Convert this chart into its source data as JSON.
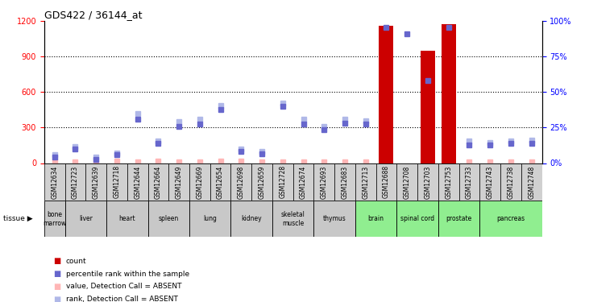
{
  "title": "GDS422 / 36144_at",
  "samples": [
    "GSM12634",
    "GSM12723",
    "GSM12639",
    "GSM12718",
    "GSM12644",
    "GSM12664",
    "GSM12649",
    "GSM12669",
    "GSM12654",
    "GSM12698",
    "GSM12659",
    "GSM12728",
    "GSM12674",
    "GSM12693",
    "GSM12683",
    "GSM12713",
    "GSM12688",
    "GSM12708",
    "GSM12703",
    "GSM12753",
    "GSM12733",
    "GSM12743",
    "GSM12738",
    "GSM12748"
  ],
  "tissues": [
    {
      "label": "bone\nmarrow",
      "start": 0,
      "end": 1,
      "color": "#c8c8c8"
    },
    {
      "label": "liver",
      "start": 1,
      "end": 3,
      "color": "#c8c8c8"
    },
    {
      "label": "heart",
      "start": 3,
      "end": 5,
      "color": "#c8c8c8"
    },
    {
      "label": "spleen",
      "start": 5,
      "end": 7,
      "color": "#c8c8c8"
    },
    {
      "label": "lung",
      "start": 7,
      "end": 9,
      "color": "#c8c8c8"
    },
    {
      "label": "kidney",
      "start": 9,
      "end": 11,
      "color": "#c8c8c8"
    },
    {
      "label": "skeletal\nmuscle",
      "start": 11,
      "end": 13,
      "color": "#c8c8c8"
    },
    {
      "label": "thymus",
      "start": 13,
      "end": 15,
      "color": "#c8c8c8"
    },
    {
      "label": "brain",
      "start": 15,
      "end": 17,
      "color": "#90ee90"
    },
    {
      "label": "spinal cord",
      "start": 17,
      "end": 19,
      "color": "#90ee90"
    },
    {
      "label": "prostate",
      "start": 19,
      "end": 21,
      "color": "#90ee90"
    },
    {
      "label": "pancreas",
      "start": 21,
      "end": 24,
      "color": "#90ee90"
    }
  ],
  "bar_values": [
    0,
    0,
    0,
    0,
    0,
    0,
    0,
    0,
    0,
    0,
    0,
    0,
    0,
    0,
    0,
    0,
    1160,
    0,
    950,
    1175,
    0,
    0,
    0,
    0
  ],
  "pink_values": [
    18,
    12,
    5,
    18,
    12,
    16,
    12,
    10,
    18,
    16,
    12,
    10,
    12,
    10,
    10,
    8,
    0,
    0,
    0,
    0,
    10,
    8,
    8,
    10
  ],
  "blue_sq_values": [
    50,
    120,
    30,
    70,
    370,
    165,
    310,
    330,
    450,
    100,
    80,
    480,
    330,
    280,
    340,
    330,
    1150,
    1090,
    700,
    1150,
    155,
    155,
    165,
    170
  ],
  "lavender_values": [
    70,
    140,
    50,
    85,
    420,
    185,
    350,
    370,
    490,
    120,
    100,
    510,
    370,
    310,
    370,
    360,
    0,
    0,
    0,
    0,
    185,
    175,
    185,
    195
  ],
  "ylim": [
    0,
    1200
  ],
  "yticks": [
    0,
    300,
    600,
    900,
    1200
  ],
  "y2ticks": [
    0,
    25,
    50,
    75,
    100
  ],
  "background_color": "#ffffff",
  "bar_color": "#cc0000",
  "pink_color": "#ffb6b6",
  "blue_color": "#6666cc",
  "lavender_color": "#b0b8e8",
  "sample_box_color": "#d0d0d0",
  "grid_color": "#000000"
}
